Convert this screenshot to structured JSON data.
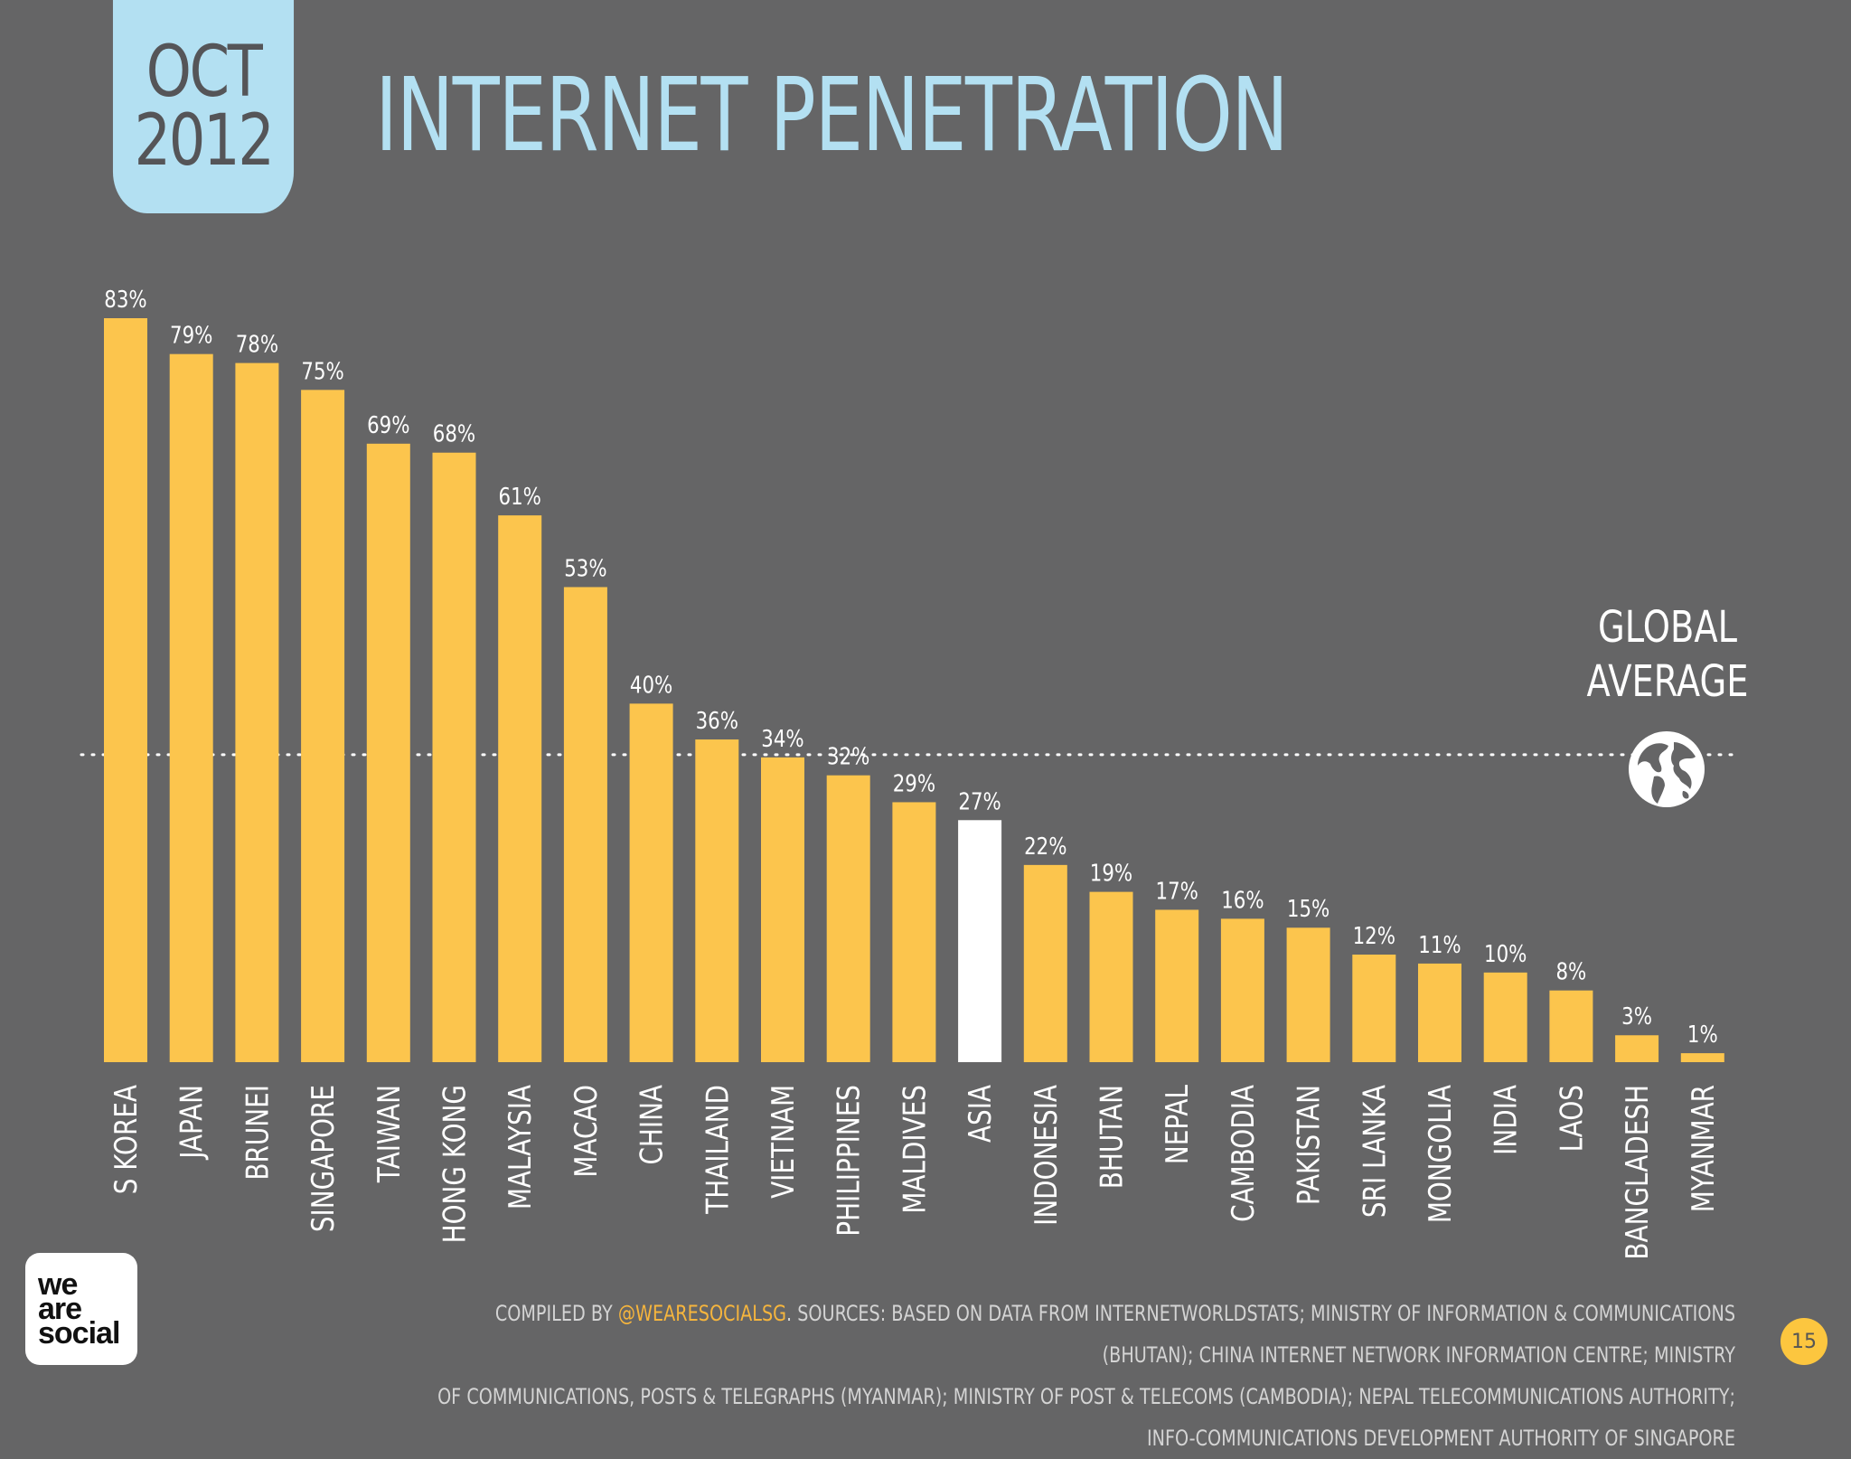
{
  "header": {
    "month": "OCT",
    "year": "2012",
    "title": "INTERNET PENETRATION"
  },
  "global_average": {
    "line1": "GLOBAL",
    "line2": "AVERAGE",
    "icon": "globe-icon"
  },
  "chart_data": {
    "type": "bar",
    "title": "INTERNET PENETRATION",
    "categories": [
      "S KOREA",
      "JAPAN",
      "BRUNEI",
      "SINGAPORE",
      "TAIWAN",
      "HONG KONG",
      "MALAYSIA",
      "MACAO",
      "CHINA",
      "THAILAND",
      "VIETNAM",
      "PHILIPPINES",
      "MALDIVES",
      "ASIA",
      "INDONESIA",
      "BHUTAN",
      "NEPAL",
      "CAMBODIA",
      "PAKISTAN",
      "SRI LANKA",
      "MONGOLIA",
      "INDIA",
      "LAOS",
      "BANGLADESH",
      "MYANMAR"
    ],
    "values": [
      83,
      79,
      78,
      75,
      69,
      68,
      61,
      53,
      40,
      36,
      34,
      32,
      29,
      27,
      22,
      19,
      17,
      16,
      15,
      12,
      11,
      10,
      8,
      3,
      1
    ],
    "value_suffix": "%",
    "highlight_category": "ASIA",
    "global_average_value": 34.3,
    "xlabel": "",
    "ylabel": "",
    "ylim": [
      0,
      83
    ],
    "grid": false,
    "colors": {
      "bar": "#fcc54d",
      "highlight": "#ffffff",
      "label": "#ffffff",
      "reference_line": "#ffffff"
    }
  },
  "logo": {
    "line1": "we",
    "line2": "are",
    "line3": "social"
  },
  "footer": {
    "prefix": "COMPILED BY ",
    "handle": "@WEARESOCIALSG",
    "line1_rest": ". SOURCES: BASED ON DATA FROM INTERNETWORLDSTATS; MINISTRY OF INFORMATION & COMMUNICATIONS (BHUTAN); CHINA INTERNET NETWORK INFORMATION CENTRE; MINISTRY",
    "line2": "OF COMMUNICATIONS, POSTS & TELEGRAPHS (MYANMAR); MINISTRY OF POST & TELECOMS (CAMBODIA); NEPAL TELECOMMUNICATIONS AUTHORITY; INFO-COMMUNICATIONS DEVELOPMENT AUTHORITY OF SINGAPORE"
  },
  "page_number": "15",
  "colors": {
    "background": "#656566",
    "accent_blue": "#b3e0f2",
    "accent_yellow": "#fcc63f"
  }
}
